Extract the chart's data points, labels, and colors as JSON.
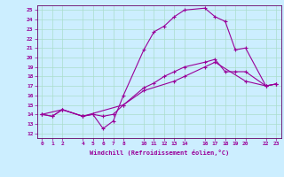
{
  "xlabel": "Windchill (Refroidissement éolien,°C)",
  "bg_color": "#cceeff",
  "grid_color": "#aaddcc",
  "line_color": "#990099",
  "spine_color": "#660066",
  "ylim": [
    11.5,
    25.5
  ],
  "xlim": [
    -0.5,
    23.5
  ],
  "yticks": [
    12,
    13,
    14,
    15,
    16,
    17,
    18,
    19,
    20,
    21,
    22,
    23,
    24,
    25
  ],
  "xticks": [
    0,
    1,
    2,
    4,
    5,
    6,
    7,
    8,
    10,
    11,
    12,
    13,
    14,
    16,
    17,
    18,
    19,
    20,
    22,
    23
  ],
  "series1_x": [
    0,
    1,
    2,
    4,
    5,
    6,
    7,
    8,
    10,
    11,
    12,
    13,
    14,
    16,
    17,
    18,
    19,
    20,
    22,
    23
  ],
  "series1_y": [
    14.0,
    13.8,
    14.5,
    13.8,
    14.0,
    12.5,
    13.3,
    16.0,
    20.8,
    22.7,
    23.3,
    24.3,
    25.0,
    25.2,
    24.3,
    23.8,
    20.8,
    21.0,
    17.0,
    17.2
  ],
  "series2_x": [
    0,
    1,
    2,
    4,
    5,
    6,
    7,
    8,
    10,
    11,
    12,
    13,
    14,
    16,
    17,
    18,
    19,
    20,
    22,
    23
  ],
  "series2_y": [
    14.0,
    13.8,
    14.5,
    13.8,
    14.0,
    13.8,
    14.0,
    15.0,
    16.8,
    17.3,
    18.0,
    18.5,
    19.0,
    19.5,
    19.8,
    18.5,
    18.5,
    18.5,
    17.0,
    17.2
  ],
  "series3_x": [
    0,
    2,
    4,
    8,
    10,
    13,
    14,
    16,
    17,
    20,
    22,
    23
  ],
  "series3_y": [
    14.0,
    14.5,
    13.8,
    15.0,
    16.5,
    17.5,
    18.0,
    19.0,
    19.5,
    17.5,
    17.0,
    17.2
  ]
}
